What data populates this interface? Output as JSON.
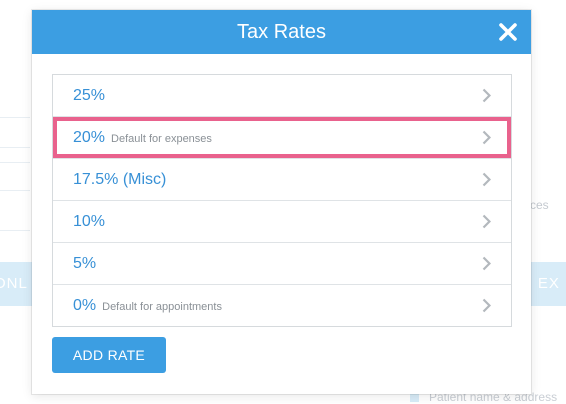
{
  "background": {
    "left_button_text": "ONL",
    "right_button_text": "O EX",
    "right_text": "ces",
    "bottom_text": "Patient name & address"
  },
  "modal": {
    "title": "Tax Rates",
    "close_icon": "close-icon",
    "rates": [
      {
        "value": "25%",
        "note": ""
      },
      {
        "value": "20%",
        "note": "Default for expenses",
        "highlighted": true
      },
      {
        "value": "17.5% (Misc)",
        "note": ""
      },
      {
        "value": "10%",
        "note": ""
      },
      {
        "value": "5%",
        "note": ""
      },
      {
        "value": "0%",
        "note": "Default for appointments"
      }
    ],
    "add_button_label": "ADD RATE"
  },
  "colors": {
    "header": "#3c9ee2",
    "link": "#3790d6",
    "highlight": "#e9628d"
  }
}
